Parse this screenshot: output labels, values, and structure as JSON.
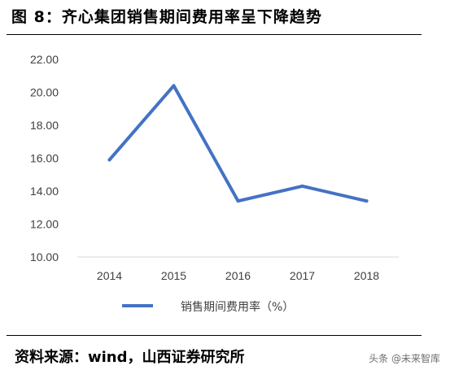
{
  "figure": {
    "title": "图 8：齐心集团销售期间费用率呈下降趋势",
    "source": "资料来源：wind，山西证券研究所",
    "watermark": "头条 @未来智库"
  },
  "colors": {
    "series_line": "#4472C4",
    "axis_text": "#404040",
    "axis_line": "#D9D9D9"
  },
  "chart_data": {
    "type": "line",
    "title": "",
    "xlabel": "",
    "ylabel": "",
    "categories": [
      "2014",
      "2015",
      "2016",
      "2017",
      "2018"
    ],
    "series": [
      {
        "name": "销售期间费用率（%）",
        "values": [
          15.9,
          20.4,
          13.4,
          14.3,
          13.4
        ]
      }
    ],
    "ylim": [
      10,
      22
    ],
    "yticks": [
      "10.00",
      "12.00",
      "14.00",
      "16.00",
      "18.00",
      "20.00",
      "22.00"
    ],
    "grid": false,
    "legend_position": "bottom"
  }
}
